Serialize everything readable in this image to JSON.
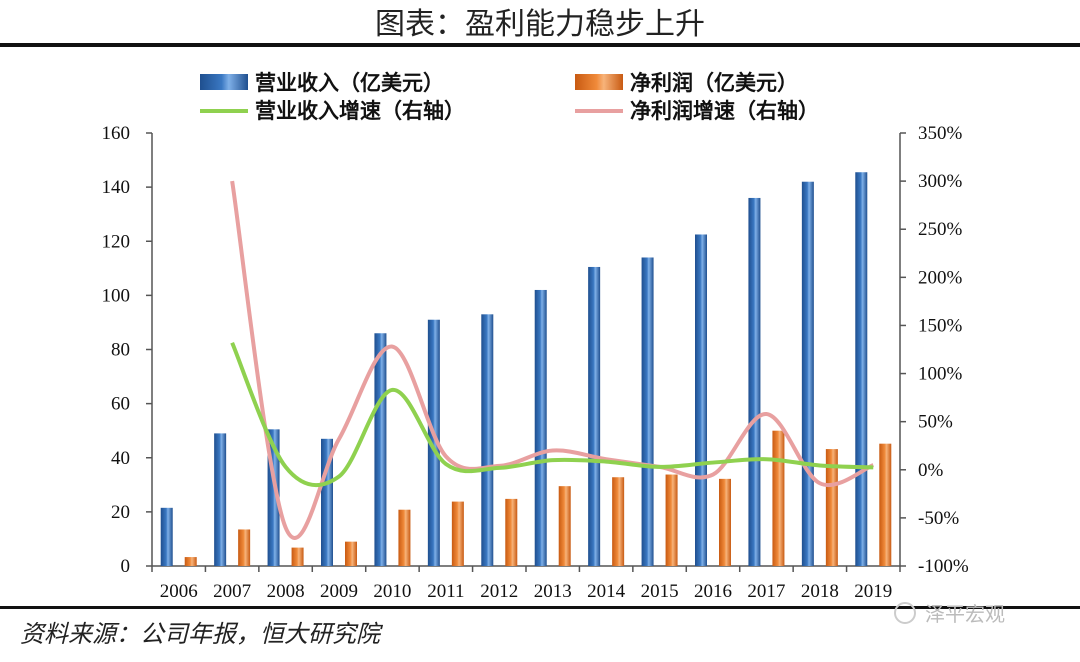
{
  "header": {
    "title": "图表：盈利能力稳步上升"
  },
  "footer": {
    "source": "资料来源：公司年报，恒大研究院",
    "watermark": "泽平宏观"
  },
  "colors": {
    "revenue": "#3a78c2",
    "profit": "#f08a3a",
    "revenue_growth": "#8fd14f",
    "profit_growth": "#e8a0a0"
  },
  "chart_data": {
    "type": "bar",
    "title": "图表：盈利能力稳步上升",
    "categories": [
      "2006",
      "2007",
      "2008",
      "2009",
      "2010",
      "2011",
      "2012",
      "2013",
      "2014",
      "2015",
      "2016",
      "2017",
      "2018",
      "2019"
    ],
    "series": [
      {
        "name": "营业收入（亿美元）",
        "type": "bar",
        "axis": "left",
        "values": [
          21.5,
          49,
          50.5,
          47,
          86,
          91,
          93,
          102,
          110.5,
          114,
          122.5,
          136,
          142,
          145.5
        ]
      },
      {
        "name": "净利润（亿美元）",
        "type": "bar",
        "axis": "left",
        "values": [
          3.3,
          13.5,
          6.8,
          9,
          20.8,
          23.8,
          24.8,
          29.5,
          32.8,
          33.8,
          32.2,
          50,
          43.2,
          45.2
        ]
      },
      {
        "name": "营业收入增速（右轴）",
        "type": "line",
        "axis": "right",
        "values": [
          null,
          1.32,
          0.03,
          -0.07,
          0.83,
          0.06,
          0.02,
          0.1,
          0.085,
          0.03,
          0.075,
          0.11,
          0.045,
          0.025
        ]
      },
      {
        "name": "净利润增速（右轴）",
        "type": "line",
        "axis": "right",
        "values": [
          null,
          3.0,
          -0.6,
          0.32,
          1.28,
          0.14,
          0.04,
          0.2,
          0.11,
          0.03,
          -0.05,
          0.58,
          -0.14,
          0.05
        ]
      }
    ],
    "y_left": {
      "min": 0,
      "max": 160,
      "ticks": [
        "0",
        "20",
        "40",
        "60",
        "80",
        "100",
        "120",
        "140",
        "160"
      ]
    },
    "y_right": {
      "min": -1,
      "max": 3.5,
      "ticks": [
        "-100%",
        "-50%",
        "0%",
        "50%",
        "100%",
        "150%",
        "200%",
        "250%",
        "300%",
        "350%"
      ]
    },
    "legend": "top",
    "grid": false
  }
}
